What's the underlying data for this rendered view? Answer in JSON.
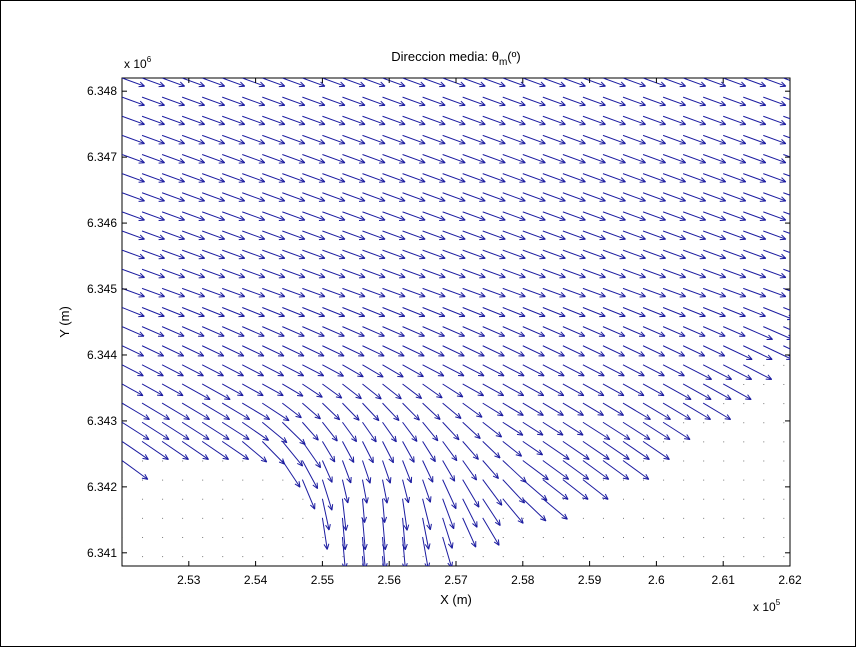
{
  "chart_data": {
    "type": "quiver",
    "title": "Direccion media: θm(º)",
    "title_parts": {
      "prefix": "Direccion media: ",
      "symbol": "θ",
      "subscript": "m",
      "suffix": "(º)"
    },
    "xlabel": "X (m)",
    "ylabel": "Y (m)",
    "x_exponent": {
      "base": "x 10",
      "power": "5"
    },
    "y_exponent": {
      "base": "x 10",
      "power": "6"
    },
    "xlim": [
      252000,
      262000
    ],
    "ylim": [
      6340800,
      6348200
    ],
    "xticks": [
      253000,
      254000,
      255000,
      256000,
      257000,
      258000,
      259000,
      260000,
      261000,
      262000
    ],
    "xtick_labels": [
      "2.53",
      "2.54",
      "2.55",
      "2.56",
      "2.57",
      "2.58",
      "2.59",
      "2.6",
      "2.61",
      "2.62"
    ],
    "yticks": [
      6341000,
      6342000,
      6343000,
      6344000,
      6345000,
      6346000,
      6347000,
      6348000
    ],
    "ytick_labels": [
      "6.341",
      "6.342",
      "6.343",
      "6.344",
      "6.345",
      "6.346",
      "6.347",
      "6.348"
    ],
    "grid": false,
    "arrow_color": "#1c1ca0",
    "dot_color": "#7a7a7a",
    "grid_points": {
      "x_start": 252000,
      "x_step": 300,
      "x_count": 34,
      "y_start": 6340950,
      "y_step": 290,
      "y_count": 26
    },
    "field_description": "Arrows point mostly east-south-east (offshore incoming waves), turning southward toward the bay near x≈2.55–2.57e5, y≈6.341–6.343e6; dots mark dry/zero points in the lower part of the domain."
  }
}
